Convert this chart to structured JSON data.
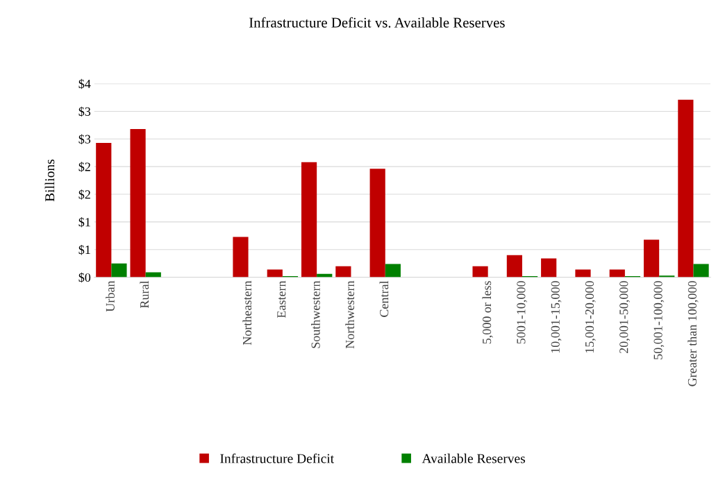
{
  "chart_data": {
    "type": "bar",
    "title": "Infrastructure Deficit vs. Available Reserves",
    "ylabel": "Billions",
    "categories": [
      "Urban",
      "Rural",
      null,
      null,
      "Northeastern",
      "Eastern",
      "Southwestern",
      "Northwestern",
      "Central",
      null,
      null,
      "5,000 or less",
      "5001-10,000",
      "10,001-15,000",
      "15,001-20,000",
      "20,001-50,000",
      "50,001-100,000",
      "Greater than 100,000"
    ],
    "series": [
      {
        "name": "Infrastructure Deficit",
        "color": "#c00000",
        "values": [
          2.43,
          2.68,
          null,
          null,
          0.73,
          0.14,
          2.08,
          0.2,
          1.96,
          null,
          null,
          0.2,
          0.4,
          0.34,
          0.14,
          0.14,
          0.68,
          3.21
        ]
      },
      {
        "name": "Available Reserves",
        "color": "#008000",
        "values": [
          0.25,
          0.09,
          null,
          null,
          0,
          0.02,
          0.06,
          0,
          0.24,
          null,
          null,
          0,
          0.02,
          0,
          0,
          0.02,
          0.03,
          0.24
        ]
      }
    ],
    "ylim": [
      0,
      3.5
    ],
    "yticks": [
      {
        "value": 0,
        "label": "$0"
      },
      {
        "value": 0.5,
        "label": "$1"
      },
      {
        "value": 1,
        "label": "$1"
      },
      {
        "value": 1.5,
        "label": "$2"
      },
      {
        "value": 2,
        "label": "$2"
      },
      {
        "value": 2.5,
        "label": "$3"
      },
      {
        "value": 3,
        "label": "$3"
      },
      {
        "value": 3.5,
        "label": "$4"
      }
    ],
    "grid": "y",
    "legend": "bottom"
  }
}
